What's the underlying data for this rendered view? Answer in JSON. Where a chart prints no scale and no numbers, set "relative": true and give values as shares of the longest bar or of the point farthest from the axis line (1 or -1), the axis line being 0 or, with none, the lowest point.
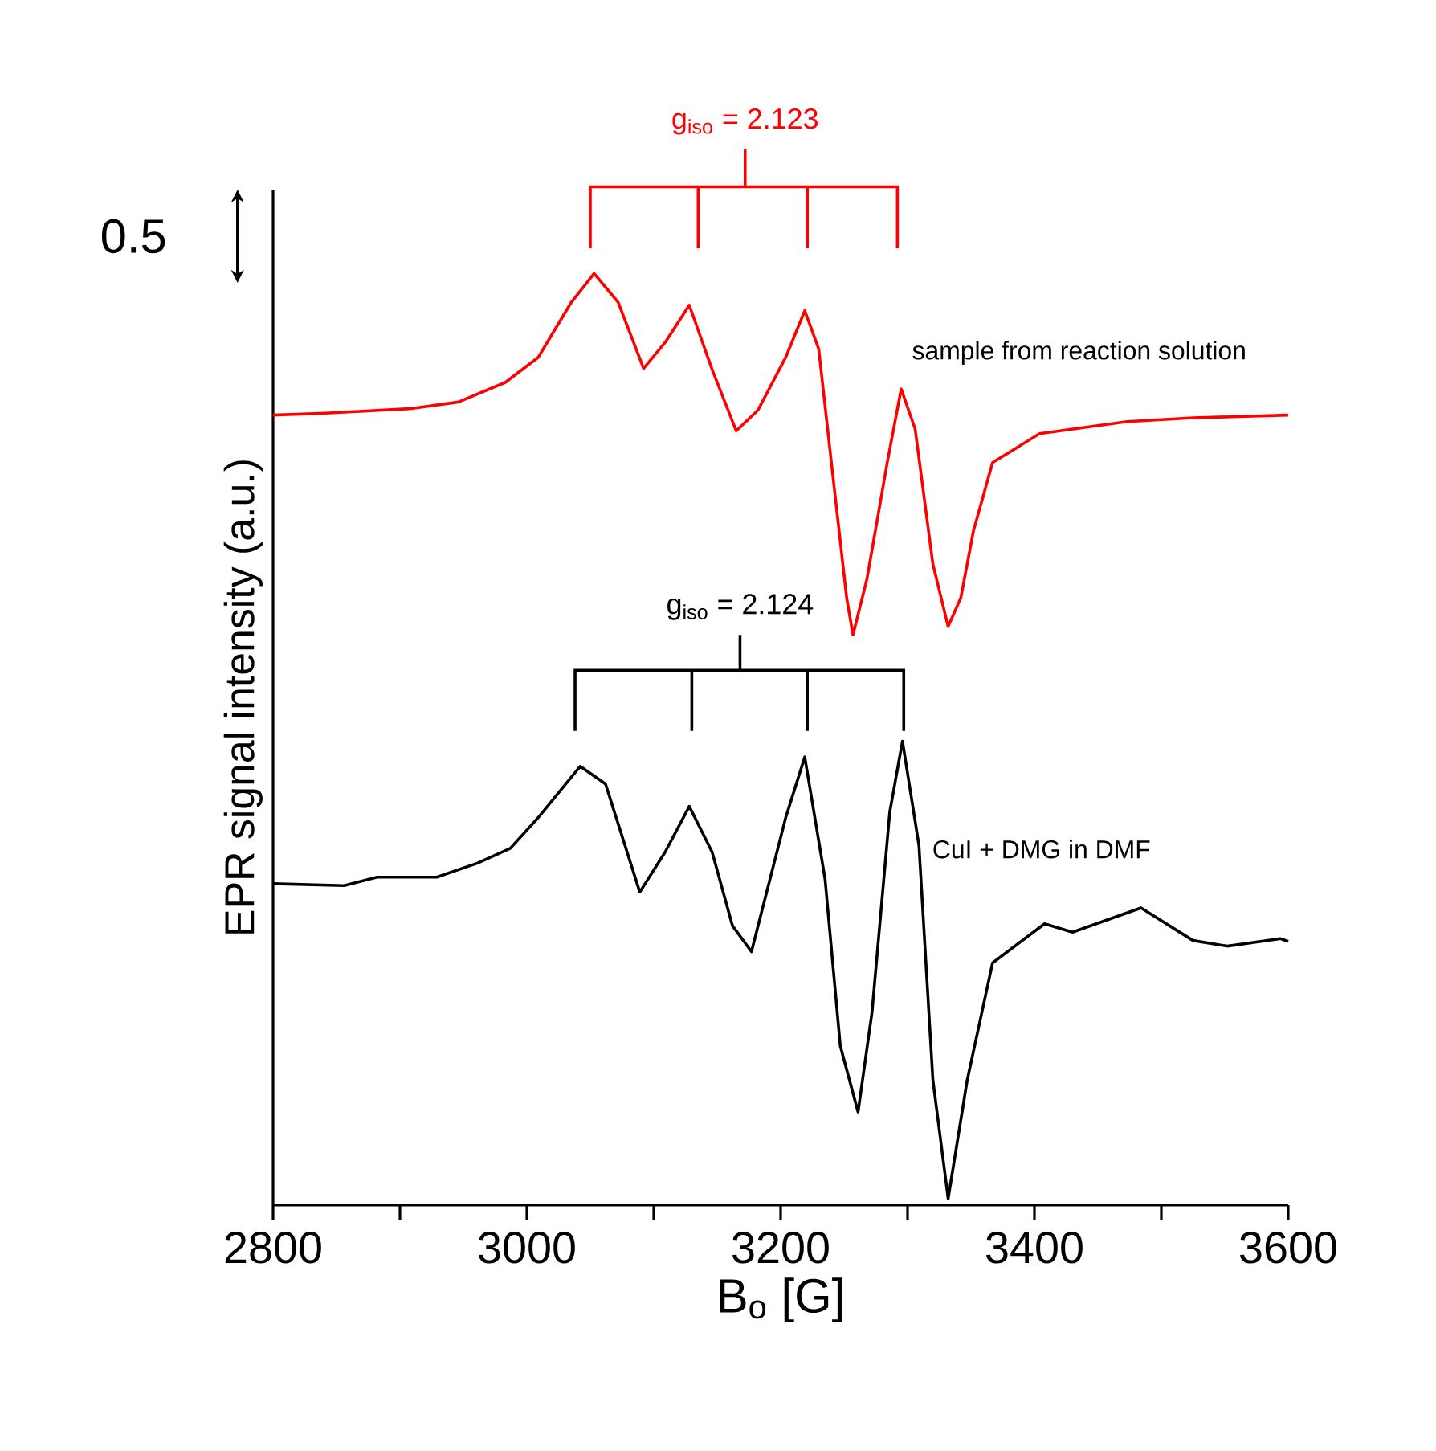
{
  "chart_data": {
    "type": "line",
    "xlabel": "B$_{o}$ [G]",
    "ylabel": "EPR signal intensity (a.u.)",
    "relative": true,
    "legend": false,
    "xlim": [
      2800,
      3600
    ],
    "xticks": [
      2800,
      {
        "value": 2900,
        "label": null
      },
      3000,
      {
        "value": 3100,
        "label": null
      },
      3200,
      {
        "value": 3300,
        "label": null
      },
      3400,
      {
        "value": 3500,
        "label": null
      },
      3600
    ],
    "annotations": [
      "g$_{iso}$ = 2.123",
      "g$_{iso}$ = 2.124",
      "0.5"
    ],
    "series": [
      {
        "name": "sample from reaction solution",
        "color": "#ff0000",
        "x": [
          2800,
          2841,
          2909,
          2946,
          2983,
          3009,
          3035,
          3053,
          3072,
          3092,
          3109,
          3128,
          3146,
          3165,
          3182,
          3204,
          3219,
          3230,
          3240,
          3252,
          3257,
          3268,
          3284,
          3295,
          3306,
          3320,
          3332,
          3342,
          3352,
          3367,
          3404,
          3473,
          3525,
          3600
        ],
        "values": [
          0.848,
          0.85,
          0.855,
          0.862,
          0.883,
          0.91,
          0.969,
          1.0,
          0.969,
          0.898,
          0.926,
          0.966,
          0.897,
          0.831,
          0.853,
          0.91,
          0.96,
          0.919,
          0.797,
          0.652,
          0.612,
          0.672,
          0.797,
          0.876,
          0.833,
          0.688,
          0.621,
          0.652,
          0.724,
          0.797,
          0.828,
          0.841,
          0.845,
          0.848
        ]
      },
      {
        "name": "CuI + DMG in DMF",
        "color": "#000000",
        "x": [
          2800,
          2856,
          2882,
          2929,
          2961,
          2987,
          3009,
          3042,
          3062,
          3089,
          3109,
          3128,
          3146,
          3162,
          3177,
          3204,
          3219,
          3235,
          3247,
          3261,
          3272,
          3286,
          3296,
          3309,
          3320,
          3332,
          3347,
          3367,
          3408,
          3430,
          3484,
          3525,
          3552,
          3594,
          3600
        ],
        "values": [
          0.345,
          0.343,
          0.352,
          0.352,
          0.367,
          0.383,
          0.416,
          0.471,
          0.452,
          0.336,
          0.379,
          0.428,
          0.379,
          0.3,
          0.272,
          0.416,
          0.481,
          0.35,
          0.171,
          0.1,
          0.207,
          0.422,
          0.498,
          0.386,
          0.134,
          0.007,
          0.134,
          0.26,
          0.302,
          0.293,
          0.319,
          0.284,
          0.278,
          0.286,
          0.283
        ]
      }
    ]
  }
}
